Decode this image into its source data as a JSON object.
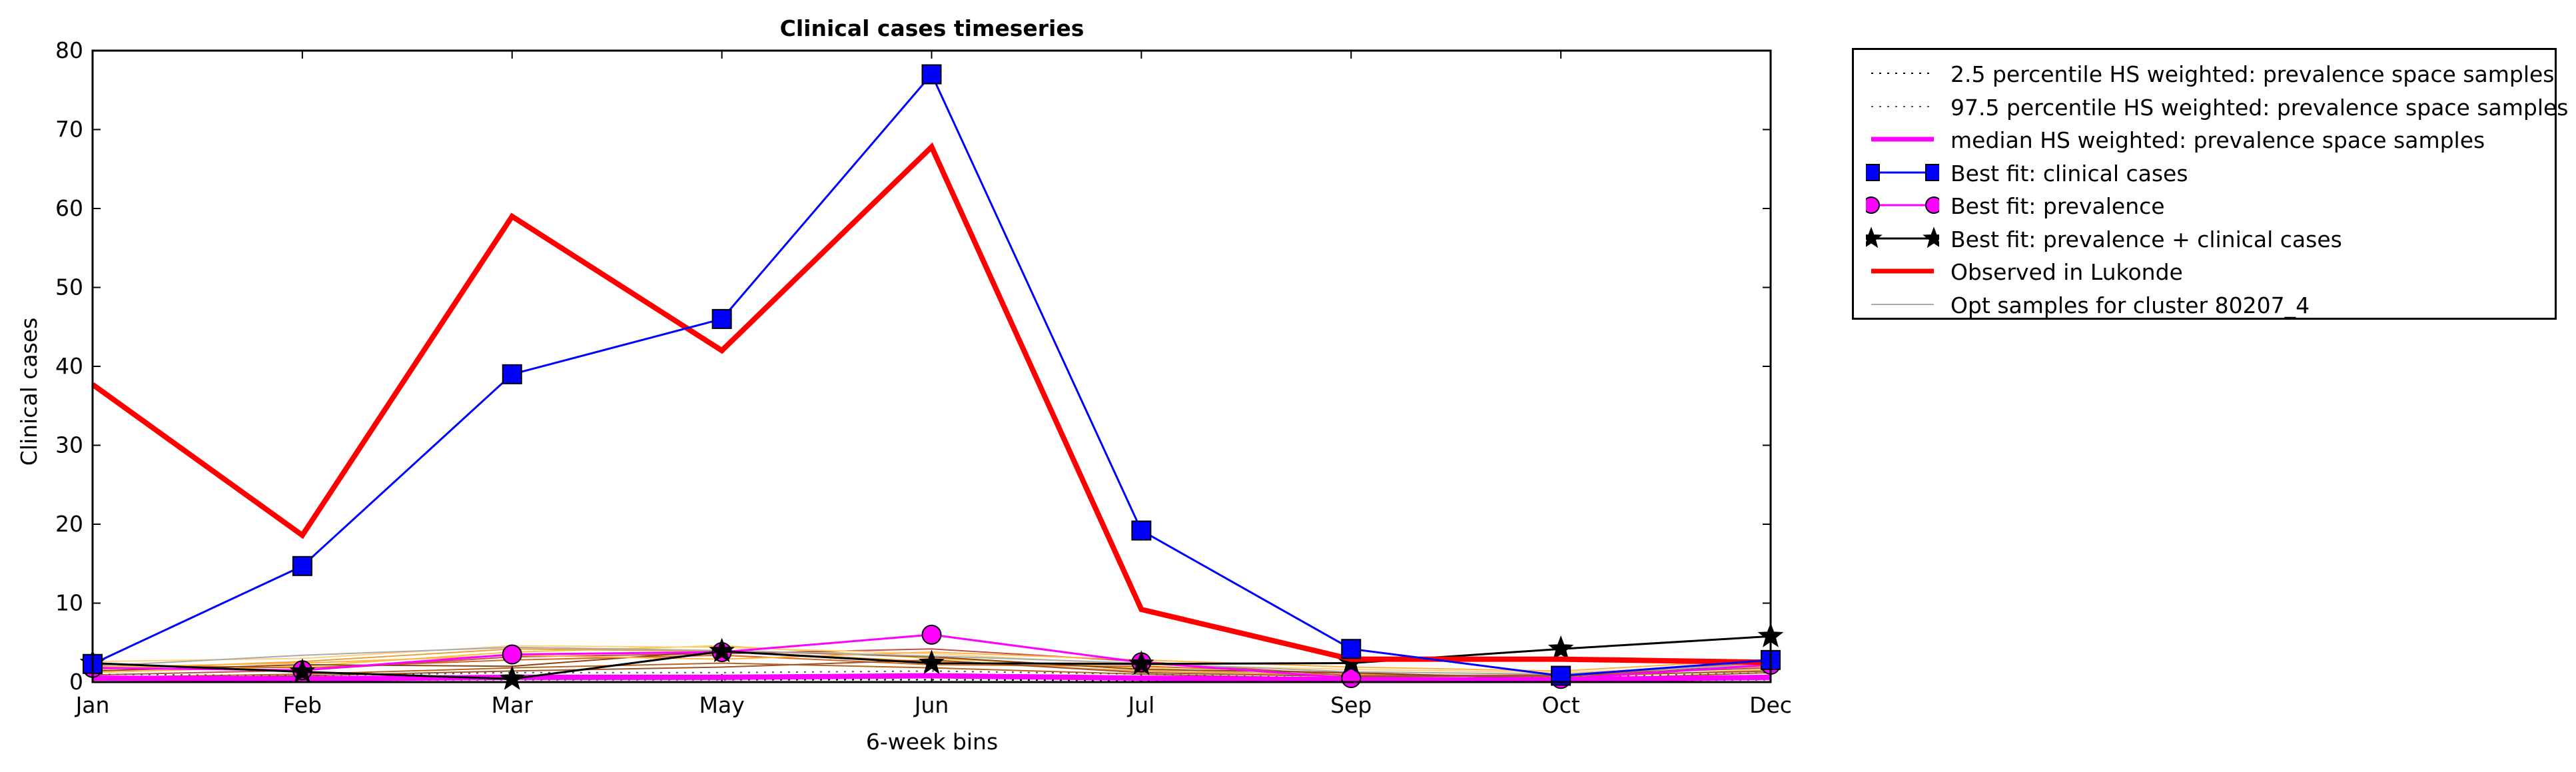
{
  "chart_data": {
    "type": "line",
    "title": "Clinical cases timeseries",
    "xlabel": "6-week bins",
    "ylabel": "Clinical cases",
    "categories": [
      "Jan",
      "Feb",
      "Mar",
      "May",
      "Jun",
      "Jul",
      "Sep",
      "Oct",
      "Dec"
    ],
    "ylim": [
      0,
      80
    ],
    "yticks": [
      0,
      10,
      20,
      30,
      40,
      50,
      60,
      70,
      80
    ],
    "legend_position": "outside-top-right",
    "grid": false,
    "series": [
      {
        "name": "2.5 percentile HS weighted: prevalence space samples",
        "color": "#000000",
        "style": "dotted",
        "marker": "none",
        "values": [
          0.3,
          0.2,
          0.3,
          0.3,
          0.3,
          0.2,
          0.1,
          0.1,
          0.3
        ]
      },
      {
        "name": "97.5 percentile HS weighted: prevalence space samples",
        "color": "#555555",
        "style": "dotted",
        "marker": "none",
        "values": [
          1.0,
          0.8,
          1.2,
          1.2,
          1.4,
          1.0,
          0.5,
          0.6,
          1.2
        ]
      },
      {
        "name": "median HS weighted: prevalence space samples",
        "color": "#ff00ff",
        "style": "solid-thick",
        "marker": "none",
        "values": [
          0.5,
          0.4,
          0.6,
          0.6,
          0.8,
          0.5,
          0.3,
          0.3,
          0.6
        ]
      },
      {
        "name": "Best fit: clinical cases",
        "color": "#0000ff",
        "style": "solid",
        "marker": "square",
        "values": [
          2.3,
          14.7,
          39,
          46,
          77,
          19.2,
          4.2,
          0.8,
          2.8
        ]
      },
      {
        "name": "Best fit: prevalence",
        "color": "#ff00ff",
        "style": "solid",
        "marker": "circle",
        "values": [
          1.8,
          1.5,
          3.5,
          3.8,
          6.0,
          2.5,
          0.5,
          0.4,
          2.2
        ]
      },
      {
        "name": "Best fit: prevalence + clinical cases",
        "color": "#000000",
        "style": "solid",
        "marker": "star",
        "values": [
          2.4,
          1.3,
          0.4,
          3.9,
          2.4,
          2.3,
          2.4,
          4.2,
          5.8
        ]
      },
      {
        "name": "Observed in Lukonde",
        "color": "#ff0000",
        "style": "solid-thick",
        "marker": "none",
        "values": [
          37.7,
          18.6,
          59,
          42,
          67.8,
          9.2,
          2.9,
          2.9,
          2.5
        ]
      },
      {
        "name": "Opt samples for cluster 80207_4",
        "color": "#aaaaaa",
        "style": "thin",
        "marker": "none",
        "values": [
          2.0,
          3.4,
          4.4,
          4.0,
          3.3,
          2.4,
          1.3,
          1.0,
          2.3
        ]
      }
    ],
    "sample_lines": [
      {
        "color": "#f5c542",
        "values": [
          1.2,
          2.0,
          3.8,
          4.6,
          3.0,
          1.8,
          0.6,
          0.5,
          1.6
        ]
      },
      {
        "color": "#e8a23c",
        "values": [
          1.6,
          2.6,
          4.2,
          3.9,
          2.6,
          1.4,
          0.9,
          0.7,
          2.0
        ]
      },
      {
        "color": "#d2691e",
        "values": [
          2.2,
          1.8,
          2.8,
          3.4,
          2.2,
          2.0,
          1.1,
          0.6,
          2.6
        ]
      },
      {
        "color": "#c0504d",
        "values": [
          0.9,
          1.5,
          3.2,
          3.6,
          4.2,
          2.6,
          0.8,
          0.9,
          1.8
        ]
      },
      {
        "color": "#8b4513",
        "values": [
          1.4,
          2.2,
          2.0,
          4.0,
          3.2,
          1.6,
          1.2,
          0.4,
          2.4
        ]
      },
      {
        "color": "#ffd27f",
        "values": [
          2.6,
          3.0,
          4.6,
          4.4,
          3.6,
          2.2,
          1.6,
          1.2,
          2.2
        ]
      },
      {
        "color": "#b5651d",
        "values": [
          0.6,
          1.0,
          1.8,
          2.4,
          1.8,
          1.0,
          0.4,
          0.3,
          1.2
        ]
      },
      {
        "color": "#ffb347",
        "values": [
          1.9,
          2.4,
          3.4,
          2.9,
          3.8,
          2.8,
          1.9,
          1.4,
          2.9
        ]
      },
      {
        "color": "#a0522d",
        "values": [
          0.4,
          0.8,
          1.4,
          1.9,
          2.8,
          1.2,
          0.7,
          0.8,
          1.4
        ]
      }
    ]
  }
}
